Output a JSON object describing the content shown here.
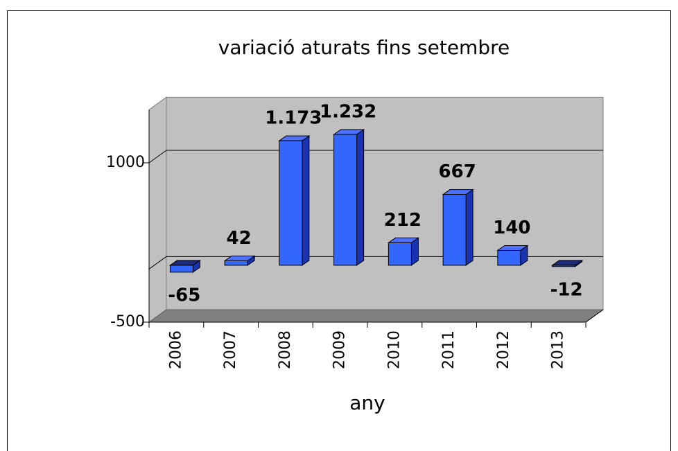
{
  "chart_data": {
    "type": "bar",
    "title": "variació aturats fins setembre",
    "x_label": "any",
    "categories": [
      "2006",
      "2007",
      "2008",
      "2009",
      "2010",
      "2011",
      "2012",
      "2013"
    ],
    "values": [
      -65,
      42,
      1173,
      1232,
      212,
      667,
      140,
      -12
    ],
    "value_labels": [
      "-65",
      "42",
      "1.173",
      "1.232",
      "212",
      "667",
      "140",
      "-12"
    ],
    "color": "#3366ff",
    "ylim": [
      -500,
      1500
    ],
    "yticks": [
      -500,
      1000
    ],
    "grid": true
  }
}
